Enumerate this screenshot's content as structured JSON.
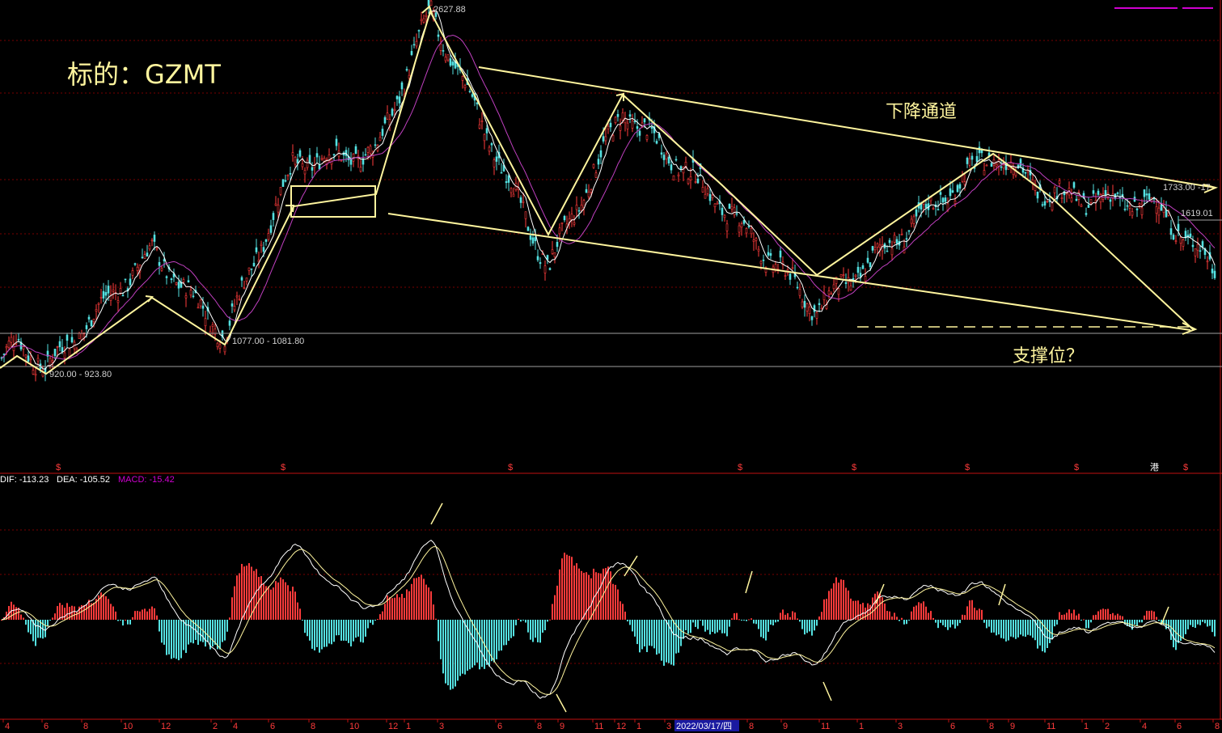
{
  "chart_data": [
    {
      "type": "line",
      "panel": "price",
      "title": "标的：GZMT",
      "labels": {
        "channel": "下降通道",
        "support": "支撑位？",
        "high": "2627.88",
        "low1": "920.00 - 923.80",
        "low2": "1077.00 - 1081.80",
        "right1": "1733.00 -17",
        "right2": "1619.01"
      },
      "pivots_x": [
        0,
        21,
        57,
        188,
        278,
        363,
        465,
        532,
        678,
        770,
        893,
        1010,
        1228,
        1300,
        1430,
        1500
      ],
      "pivots_price": [
        950,
        1050,
        920,
        1480,
        1078,
        1900,
        1950,
        2627,
        1400,
        2150,
        1700,
        1200,
        1950,
        1750,
        1700,
        1400
      ],
      "channel_top": [
        [
          592,
          2250
        ],
        [
          1503,
          1712
        ]
      ],
      "channel_bottom": [
        [
          480,
          1550
        ],
        [
          1470,
          1010
        ]
      ],
      "support_level": 1040,
      "ylim": [
        500,
        2700
      ]
    },
    {
      "type": "line",
      "panel": "macd",
      "legend": {
        "dif": "DIF: -113.23",
        "dea": "DEA: -105.52",
        "macd": "MACD: -15.42"
      },
      "dif_last": -113.23,
      "dea_last": -105.52,
      "macd_last": -15.42
    }
  ],
  "colors": {
    "bg": "#000000",
    "up": "#ff3b3b",
    "down": "#54e1e1",
    "annot": "#fff59e",
    "ma_slow": "#c040c0",
    "grid": "#7a0000",
    "axis": "#c01010"
  },
  "x_axis": {
    "ticks": [
      "4",
      "6",
      "8",
      "10",
      "12",
      "2",
      "4",
      "6",
      "8",
      "10",
      "12",
      "1",
      "3",
      "6",
      "8",
      "9",
      "11",
      "12",
      "1",
      "3",
      "2022/03/17/四",
      "8",
      "9",
      "11",
      "1",
      "3",
      "6",
      "8",
      "9",
      "11",
      "1",
      "2",
      "4",
      "6",
      "8"
    ],
    "highlight": "2022/03/17/四"
  },
  "markers": {
    "dollar": "$",
    "port": "港"
  },
  "top_legend_color": "#d000d0"
}
